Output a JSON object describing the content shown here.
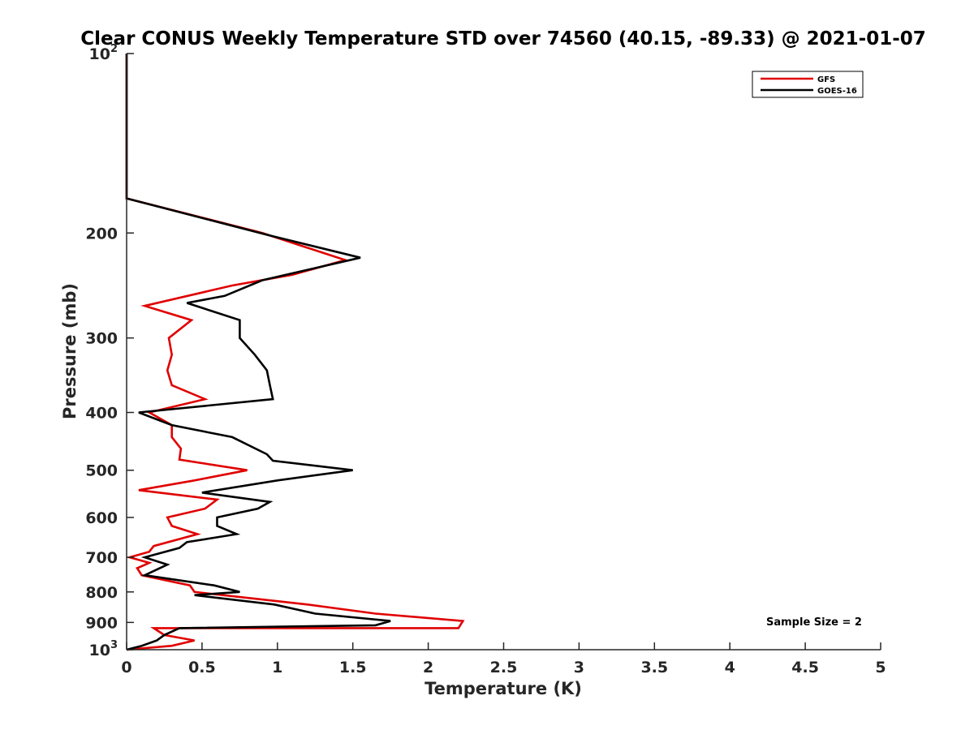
{
  "chart_data": {
    "type": "line",
    "title": "Clear CONUS Weekly Temperature STD over 74560 (40.15, -89.33) @ 2021-01-07",
    "xlabel": "Temperature (K)",
    "ylabel": "Pressure (mb)",
    "xlim": [
      0,
      5
    ],
    "ylim": [
      100,
      1000
    ],
    "y_scale": "log",
    "y_direction": "reversed",
    "x_ticks": [
      0,
      0.5,
      1,
      1.5,
      2,
      2.5,
      3,
      3.5,
      4,
      4.5,
      5
    ],
    "x_tick_labels": [
      "0",
      "0.5",
      "1",
      "1.5",
      "2",
      "2.5",
      "3",
      "3.5",
      "4",
      "4.5",
      "5"
    ],
    "y_ticks": [
      100,
      200,
      300,
      400,
      500,
      600,
      700,
      800,
      900,
      1000
    ],
    "y_tick_labels": [
      {
        "base": "10",
        "exp": "2"
      },
      {
        "base": "200",
        "exp": ""
      },
      {
        "base": "300",
        "exp": ""
      },
      {
        "base": "400",
        "exp": ""
      },
      {
        "base": "500",
        "exp": ""
      },
      {
        "base": "600",
        "exp": ""
      },
      {
        "base": "700",
        "exp": ""
      },
      {
        "base": "800",
        "exp": ""
      },
      {
        "base": "900",
        "exp": ""
      },
      {
        "base": "10",
        "exp": "3"
      }
    ],
    "grid": false,
    "legend_position": "top-right",
    "annotation": "Sample Size = 2",
    "series": [
      {
        "name": "GFS",
        "color": "#e00000",
        "points": [
          [
            0,
            100
          ],
          [
            0,
            175
          ],
          [
            0.9,
            200
          ],
          [
            1.45,
            222
          ],
          [
            1.1,
            235
          ],
          [
            0.7,
            245
          ],
          [
            0.12,
            265
          ],
          [
            0.43,
            280
          ],
          [
            0.28,
            300
          ],
          [
            0.3,
            320
          ],
          [
            0.27,
            340
          ],
          [
            0.3,
            360
          ],
          [
            0.52,
            380
          ],
          [
            0.15,
            400
          ],
          [
            0.3,
            420
          ],
          [
            0.3,
            440
          ],
          [
            0.36,
            460
          ],
          [
            0.35,
            480
          ],
          [
            0.8,
            500
          ],
          [
            0.45,
            520
          ],
          [
            0.08,
            540
          ],
          [
            0.6,
            560
          ],
          [
            0.52,
            580
          ],
          [
            0.27,
            600
          ],
          [
            0.3,
            620
          ],
          [
            0.47,
            640
          ],
          [
            0.18,
            670
          ],
          [
            0.15,
            685
          ],
          [
            0.02,
            700
          ],
          [
            0.15,
            715
          ],
          [
            0.07,
            730
          ],
          [
            0.1,
            750
          ],
          [
            0.42,
            780
          ],
          [
            0.45,
            800
          ],
          [
            1.2,
            840
          ],
          [
            1.65,
            870
          ],
          [
            2.23,
            895
          ],
          [
            2.2,
            920
          ],
          [
            0.18,
            920
          ],
          [
            0.25,
            945
          ],
          [
            0.45,
            965
          ],
          [
            0.3,
            985
          ],
          [
            0,
            1000
          ]
        ]
      },
      {
        "name": "GOES-16",
        "color": "#000000",
        "points": [
          [
            0,
            100
          ],
          [
            0,
            175
          ],
          [
            0.95,
            202
          ],
          [
            1.55,
            220
          ],
          [
            0.9,
            240
          ],
          [
            0.65,
            255
          ],
          [
            0.4,
            262
          ],
          [
            0.75,
            280
          ],
          [
            0.75,
            300
          ],
          [
            0.85,
            320
          ],
          [
            0.93,
            340
          ],
          [
            0.95,
            360
          ],
          [
            0.97,
            380
          ],
          [
            0.08,
            400
          ],
          [
            0.3,
            420
          ],
          [
            0.7,
            440
          ],
          [
            0.93,
            470
          ],
          [
            0.97,
            482
          ],
          [
            1.5,
            500
          ],
          [
            1,
            520
          ],
          [
            0.5,
            545
          ],
          [
            0.95,
            565
          ],
          [
            0.87,
            580
          ],
          [
            0.6,
            600
          ],
          [
            0.6,
            620
          ],
          [
            0.73,
            640
          ],
          [
            0.4,
            660
          ],
          [
            0.35,
            675
          ],
          [
            0.12,
            700
          ],
          [
            0.27,
            720
          ],
          [
            0.12,
            750
          ],
          [
            0.58,
            780
          ],
          [
            0.75,
            800
          ],
          [
            0.45,
            810
          ],
          [
            0.98,
            840
          ],
          [
            1.25,
            870
          ],
          [
            1.75,
            895
          ],
          [
            1.65,
            910
          ],
          [
            0.35,
            920
          ],
          [
            0.25,
            945
          ],
          [
            0.2,
            965
          ],
          [
            0.1,
            985
          ],
          [
            0,
            1000
          ]
        ]
      }
    ]
  }
}
